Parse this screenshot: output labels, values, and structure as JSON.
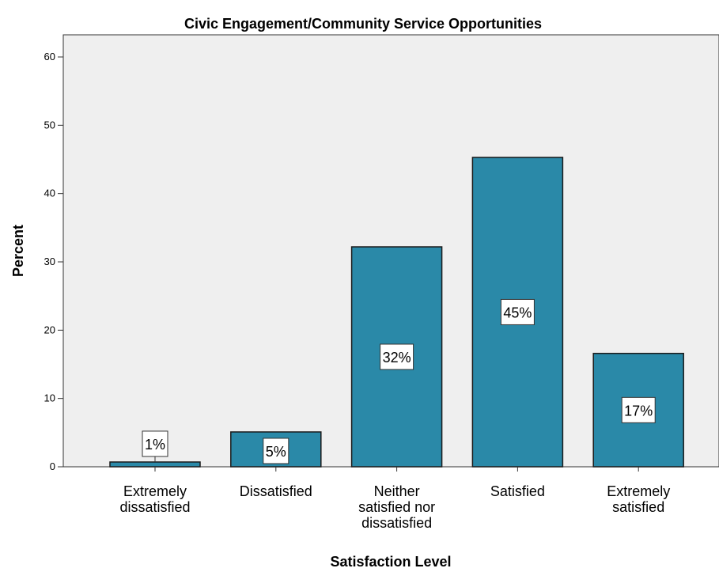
{
  "chart_data": {
    "type": "bar",
    "title": "Civic Engagement/Community Service Opportunities",
    "xlabel": "Satisfaction Level",
    "ylabel": "Percent",
    "categories": [
      [
        "Extremely",
        "dissatisfied"
      ],
      [
        "Dissatisfied"
      ],
      [
        "Neither",
        "satisfied nor",
        "dissatisfied"
      ],
      [
        "Satisfied"
      ],
      [
        "Extremely",
        "satisfied"
      ]
    ],
    "values": [
      0.7,
      5.1,
      32.2,
      45.3,
      16.6
    ],
    "data_labels": [
      "1%",
      "5%",
      "32%",
      "45%",
      "17%"
    ],
    "ylim": [
      0,
      63
    ],
    "yticks": [
      0,
      10,
      20,
      30,
      40,
      50,
      60
    ],
    "grid": false,
    "colors": {
      "bar": "#2a89a8",
      "bar_stroke": "#1a1a1a",
      "plot_bg": "#efefef",
      "label_bg": "#ffffff"
    }
  }
}
